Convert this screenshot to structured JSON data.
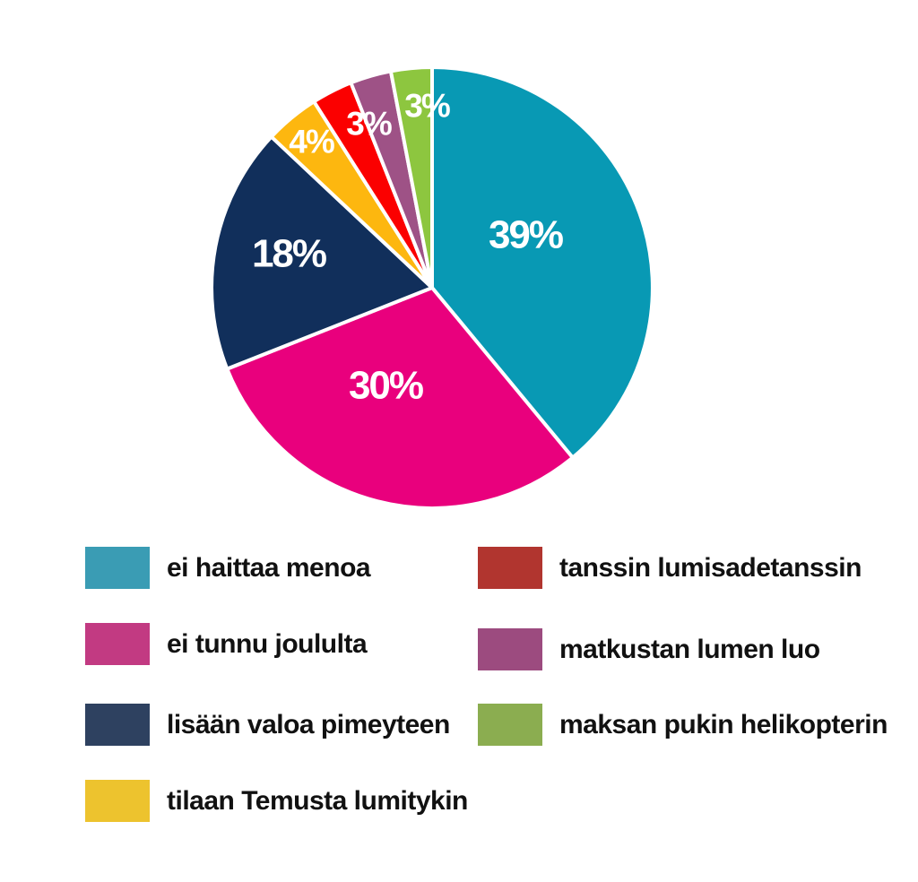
{
  "chart_data": {
    "type": "pie",
    "title": "",
    "legend_position": "bottom",
    "start_angle_deg": 0,
    "direction": "clockwise",
    "background": "#ffffff",
    "label_color": "#ffffff",
    "legend_text_color": "#111111",
    "slices": [
      {
        "label": "ei haittaa menoa",
        "value": 39,
        "pct_label": "39%",
        "color": "#0899b4",
        "legend_color": "#3a9cb4"
      },
      {
        "label": "ei tunnu joululta",
        "value": 30,
        "pct_label": "30%",
        "color": "#e9007d",
        "legend_color": "#c23a82"
      },
      {
        "label": "lisään valoa pimeyteen",
        "value": 18,
        "pct_label": "18%",
        "color": "#112f5b",
        "legend_color": "#2e4160"
      },
      {
        "label": "tilaan Temusta lumitykin",
        "value": 4,
        "pct_label": "4%",
        "color": "#fdb70f",
        "legend_color": "#edc32e"
      },
      {
        "label": "tanssin lumisadetanssin",
        "value": 3,
        "pct_label": "3%",
        "color": "#fb0000",
        "legend_color": "#b1352f"
      },
      {
        "label": "matkustan lumen luo",
        "value": 3,
        "pct_label": "",
        "color": "#9e5286",
        "legend_color": "#9c4b7f"
      },
      {
        "label": "maksan pukin helikopterin",
        "value": 3,
        "pct_label": "3%",
        "color": "#8dc63f",
        "legend_color": "#8bad50"
      }
    ],
    "legend_columns": {
      "left": [
        0,
        1,
        2,
        3
      ],
      "right": [
        4,
        5,
        6
      ]
    }
  }
}
